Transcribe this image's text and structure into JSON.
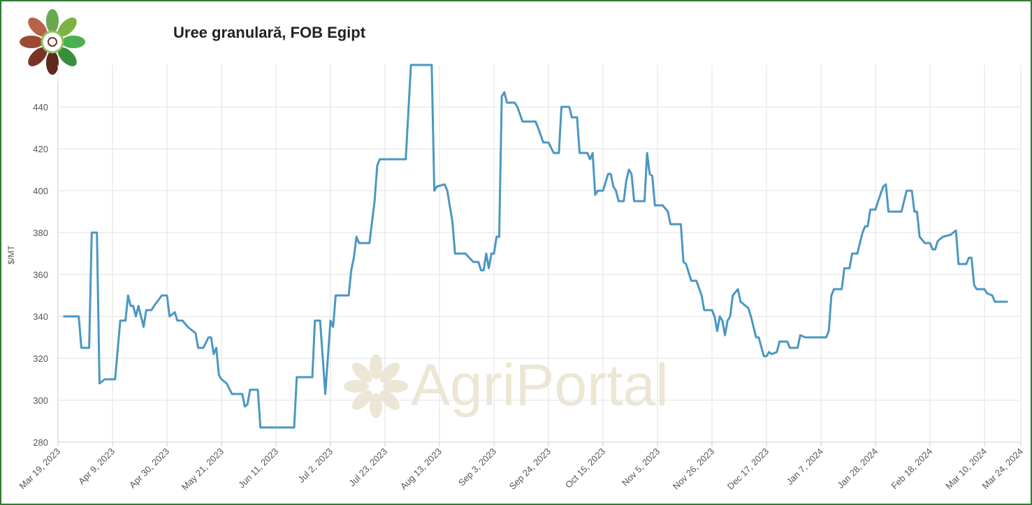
{
  "chart_data": {
    "type": "line",
    "title": "Uree granulară, FOB Egipt",
    "ylabel": "$/MT",
    "watermark": "AgriPortal",
    "grid": true,
    "xlim": [
      "2023-03-19",
      "2024-03-24"
    ],
    "xticks": [
      {
        "value": "2023-03-19",
        "label": "Mar 19, 2023"
      },
      {
        "value": "2023-04-09",
        "label": "Apr 9, 2023"
      },
      {
        "value": "2023-04-30",
        "label": "Apr 30, 2023"
      },
      {
        "value": "2023-05-21",
        "label": "May 21, 2023"
      },
      {
        "value": "2023-06-11",
        "label": "Jun 11, 2023"
      },
      {
        "value": "2023-07-02",
        "label": "Jul 2, 2023"
      },
      {
        "value": "2023-07-23",
        "label": "Jul 23, 2023"
      },
      {
        "value": "2023-08-13",
        "label": "Aug 13, 2023"
      },
      {
        "value": "2023-09-03",
        "label": "Sep 3, 2023"
      },
      {
        "value": "2023-09-24",
        "label": "Sep 24, 2023"
      },
      {
        "value": "2023-10-15",
        "label": "Oct 15, 2023"
      },
      {
        "value": "2023-11-05",
        "label": "Nov 5, 2023"
      },
      {
        "value": "2023-11-26",
        "label": "Nov 26, 2023"
      },
      {
        "value": "2023-12-17",
        "label": "Dec 17, 2023"
      },
      {
        "value": "2024-01-07",
        "label": "Jan 7, 2024"
      },
      {
        "value": "2024-01-28",
        "label": "Jan 28, 2024"
      },
      {
        "value": "2024-02-18",
        "label": "Feb 18, 2024"
      },
      {
        "value": "2024-03-10",
        "label": "Mar 10, 2024"
      },
      {
        "value": "2024-03-24",
        "label": "Mar 24, 2024"
      }
    ],
    "ylim": [
      280,
      460
    ],
    "yticks": [
      280,
      300,
      320,
      340,
      360,
      380,
      400,
      420,
      440
    ],
    "color": "#4a97c2",
    "x": [
      "2023-03-21",
      "2023-03-27",
      "2023-03-28",
      "2023-03-31",
      "2023-04-01",
      "2023-04-03",
      "2023-04-04",
      "2023-04-06",
      "2023-04-10",
      "2023-04-12",
      "2023-04-14",
      "2023-04-15",
      "2023-04-16",
      "2023-04-17",
      "2023-04-18",
      "2023-04-19",
      "2023-04-21",
      "2023-04-22",
      "2023-04-24",
      "2023-04-25",
      "2023-04-28",
      "2023-04-30",
      "2023-05-01",
      "2023-05-03",
      "2023-05-04",
      "2023-05-06",
      "2023-05-08",
      "2023-05-11",
      "2023-05-12",
      "2023-05-14",
      "2023-05-16",
      "2023-05-17",
      "2023-05-18",
      "2023-05-19",
      "2023-05-20",
      "2023-05-21",
      "2023-05-23",
      "2023-05-25",
      "2023-05-29",
      "2023-05-30",
      "2023-05-31",
      "2023-06-01",
      "2023-06-04",
      "2023-06-05",
      "2023-06-18",
      "2023-06-19",
      "2023-06-25",
      "2023-06-26",
      "2023-06-28",
      "2023-06-30",
      "2023-07-02",
      "2023-07-03",
      "2023-07-04",
      "2023-07-09",
      "2023-07-10",
      "2023-07-11",
      "2023-07-12",
      "2023-07-13",
      "2023-07-17",
      "2023-07-19",
      "2023-07-20",
      "2023-07-21",
      "2023-07-31",
      "2023-08-02",
      "2023-08-10",
      "2023-08-11",
      "2023-08-12",
      "2023-08-15",
      "2023-08-16",
      "2023-08-18",
      "2023-08-19",
      "2023-08-23",
      "2023-08-26",
      "2023-08-28",
      "2023-08-29",
      "2023-08-30",
      "2023-08-31",
      "2023-09-01",
      "2023-09-02",
      "2023-09-03",
      "2023-09-04",
      "2023-09-05",
      "2023-09-06",
      "2023-09-07",
      "2023-09-08",
      "2023-09-11",
      "2023-09-12",
      "2023-09-14",
      "2023-09-19",
      "2023-09-20",
      "2023-09-22",
      "2023-09-24",
      "2023-09-26",
      "2023-09-28",
      "2023-09-29",
      "2023-10-02",
      "2023-10-03",
      "2023-10-05",
      "2023-10-06",
      "2023-10-09",
      "2023-10-10",
      "2023-10-11",
      "2023-10-12",
      "2023-10-13",
      "2023-10-15",
      "2023-10-17",
      "2023-10-18",
      "2023-10-19",
      "2023-10-20",
      "2023-10-21",
      "2023-10-23",
      "2023-10-24",
      "2023-10-25",
      "2023-10-26",
      "2023-10-27",
      "2023-10-31",
      "2023-11-01",
      "2023-11-02",
      "2023-11-03",
      "2023-11-04",
      "2023-11-07",
      "2023-11-09",
      "2023-11-10",
      "2023-11-14",
      "2023-11-15",
      "2023-11-16",
      "2023-11-18",
      "2023-11-20",
      "2023-11-22",
      "2023-11-23",
      "2023-11-26",
      "2023-11-27",
      "2023-11-28",
      "2023-11-29",
      "2023-11-30",
      "2023-12-01",
      "2023-12-02",
      "2023-12-03",
      "2023-12-04",
      "2023-12-06",
      "2023-12-07",
      "2023-12-08",
      "2023-12-10",
      "2023-12-11",
      "2023-12-13",
      "2023-12-14",
      "2023-12-16",
      "2023-12-17",
      "2023-12-18",
      "2023-12-19",
      "2023-12-21",
      "2023-12-22",
      "2023-12-25",
      "2023-12-26",
      "2023-12-29",
      "2023-12-30",
      "2024-01-01",
      "2024-01-09",
      "2024-01-10",
      "2024-01-11",
      "2024-01-12",
      "2024-01-15",
      "2024-01-16",
      "2024-01-18",
      "2024-01-19",
      "2024-01-21",
      "2024-01-23",
      "2024-01-24",
      "2024-01-25",
      "2024-01-26",
      "2024-01-28",
      "2024-01-29",
      "2024-01-31",
      "2024-02-01",
      "2024-02-02",
      "2024-02-07",
      "2024-02-09",
      "2024-02-11",
      "2024-02-12",
      "2024-02-13",
      "2024-02-14",
      "2024-02-16",
      "2024-02-18",
      "2024-02-19",
      "2024-02-20",
      "2024-02-21",
      "2024-02-23",
      "2024-02-26",
      "2024-02-28",
      "2024-02-29",
      "2024-03-03",
      "2024-03-04",
      "2024-03-05",
      "2024-03-06",
      "2024-03-07",
      "2024-03-10",
      "2024-03-11",
      "2024-03-13",
      "2024-03-14",
      "2024-03-19"
    ],
    "values": [
      340,
      340,
      325,
      325,
      380,
      380,
      308,
      310,
      310,
      338,
      338,
      350,
      345,
      345,
      340,
      345,
      335,
      343,
      343,
      345,
      350,
      350,
      340,
      342,
      338,
      338,
      335,
      332,
      325,
      325,
      330,
      330,
      322,
      325,
      312,
      310,
      308,
      303,
      303,
      297,
      298,
      305,
      305,
      287,
      287,
      311,
      311,
      338,
      338,
      303,
      338,
      335,
      350,
      350,
      362,
      368,
      378,
      375,
      375,
      395,
      412,
      415,
      415,
      460,
      460,
      400,
      402,
      403,
      400,
      385,
      370,
      370,
      366,
      366,
      362,
      362,
      370,
      363,
      370,
      370,
      378,
      378,
      445,
      447,
      442,
      442,
      440,
      433,
      433,
      430,
      423,
      423,
      418,
      418,
      440,
      440,
      435,
      435,
      418,
      418,
      415,
      418,
      398,
      400,
      400,
      408,
      408,
      402,
      400,
      395,
      395,
      405,
      410,
      408,
      395,
      395,
      418,
      408,
      407,
      393,
      393,
      390,
      384,
      384,
      366,
      365,
      357,
      357,
      350,
      343,
      343,
      340,
      333,
      340,
      338,
      331,
      338,
      340,
      350,
      353,
      347,
      346,
      344,
      340,
      330,
      330,
      321,
      321,
      323,
      322,
      323,
      328,
      328,
      325,
      325,
      331,
      330,
      330,
      333,
      350,
      353,
      353,
      363,
      363,
      370,
      370,
      380,
      383,
      383,
      391,
      391,
      395,
      402,
      403,
      390,
      390,
      400,
      400,
      390,
      390,
      378,
      375,
      375,
      372,
      372,
      376,
      378,
      379,
      381,
      365,
      365,
      368,
      368,
      355,
      353,
      353,
      351,
      350,
      347,
      347
    ]
  }
}
